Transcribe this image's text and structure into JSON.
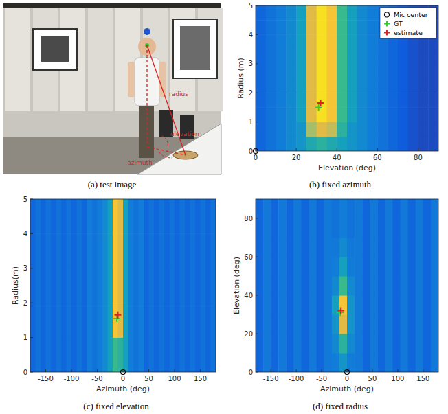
{
  "image_panel": {
    "caption": "(a) test image",
    "labels": [
      "radius",
      "elevation",
      "azimuth"
    ]
  },
  "chart_data": [
    {
      "type": "heatmap",
      "caption": "(b) fixed azimuth",
      "xlabel": "Elevation (deg)",
      "ylabel": "Radius (m)",
      "xlim": [
        0,
        90
      ],
      "xticks": [
        0,
        20,
        40,
        60,
        80
      ],
      "ylim": [
        0,
        5
      ],
      "yticks": [
        0,
        1,
        2,
        3,
        4,
        5
      ],
      "color_range": [
        0,
        1
      ],
      "xbins": [
        0,
        5,
        10,
        15,
        20,
        25,
        30,
        35,
        40,
        45,
        50,
        55,
        60,
        65,
        70,
        75,
        80,
        85,
        90
      ],
      "ybins": [
        0,
        0.5,
        1,
        1.5,
        2,
        2.5,
        3,
        3.5,
        4,
        4.5,
        5
      ],
      "cells": [
        [
          0.2,
          0.25,
          0.3,
          0.35,
          0.4,
          0.5,
          0.55,
          0.5,
          0.45,
          0.4,
          0.35,
          0.3,
          0.25,
          0.2,
          0.15,
          0.12,
          0.1,
          0.1
        ],
        [
          0.2,
          0.25,
          0.3,
          0.35,
          0.4,
          0.75,
          0.85,
          0.8,
          0.55,
          0.4,
          0.35,
          0.3,
          0.25,
          0.2,
          0.15,
          0.12,
          0.1,
          0.1
        ],
        [
          0.2,
          0.25,
          0.3,
          0.35,
          0.45,
          0.85,
          0.95,
          0.9,
          0.6,
          0.45,
          0.35,
          0.3,
          0.25,
          0.2,
          0.15,
          0.12,
          0.1,
          0.1
        ],
        [
          0.2,
          0.25,
          0.3,
          0.35,
          0.45,
          0.85,
          0.95,
          0.9,
          0.6,
          0.45,
          0.35,
          0.3,
          0.25,
          0.2,
          0.15,
          0.12,
          0.1,
          0.1
        ],
        [
          0.2,
          0.25,
          0.3,
          0.35,
          0.45,
          0.85,
          0.95,
          0.9,
          0.6,
          0.45,
          0.35,
          0.3,
          0.25,
          0.2,
          0.15,
          0.12,
          0.1,
          0.1
        ],
        [
          0.2,
          0.25,
          0.3,
          0.35,
          0.45,
          0.85,
          0.95,
          0.9,
          0.6,
          0.45,
          0.35,
          0.3,
          0.25,
          0.2,
          0.15,
          0.12,
          0.1,
          0.1
        ],
        [
          0.2,
          0.25,
          0.3,
          0.35,
          0.45,
          0.85,
          0.95,
          0.9,
          0.6,
          0.45,
          0.35,
          0.3,
          0.25,
          0.2,
          0.15,
          0.12,
          0.1,
          0.1
        ],
        [
          0.2,
          0.25,
          0.3,
          0.35,
          0.45,
          0.85,
          0.95,
          0.9,
          0.6,
          0.45,
          0.35,
          0.3,
          0.25,
          0.2,
          0.15,
          0.12,
          0.1,
          0.1
        ],
        [
          0.2,
          0.25,
          0.3,
          0.35,
          0.45,
          0.85,
          0.95,
          0.9,
          0.6,
          0.45,
          0.35,
          0.3,
          0.25,
          0.2,
          0.15,
          0.12,
          0.1,
          0.1
        ],
        [
          0.2,
          0.25,
          0.3,
          0.35,
          0.45,
          0.85,
          0.95,
          0.9,
          0.6,
          0.45,
          0.35,
          0.3,
          0.25,
          0.2,
          0.15,
          0.12,
          0.1,
          0.1
        ]
      ],
      "legend": "upper right",
      "series": [
        {
          "name": "Mic center",
          "type": "scatter",
          "marker": "circle",
          "color": "#000000",
          "x": [
            0
          ],
          "values": [
            0
          ]
        },
        {
          "name": "GT",
          "type": "scatter",
          "marker": "plus",
          "color": "#33cc33",
          "x": [
            31
          ],
          "values": [
            1.5
          ]
        },
        {
          "name": "estimate",
          "type": "scatter",
          "marker": "plus",
          "color": "#dd2222",
          "x": [
            32
          ],
          "values": [
            1.65
          ]
        }
      ]
    },
    {
      "type": "heatmap",
      "caption": "(c) fixed elevation",
      "xlabel": "Azimuth (deg)",
      "ylabel": "Radius(m)",
      "xlim": [
        -180,
        180
      ],
      "xticks": [
        -150,
        -100,
        -50,
        0,
        50,
        100,
        150
      ],
      "ylim": [
        0,
        5
      ],
      "yticks": [
        0,
        1,
        2,
        3,
        4,
        5
      ],
      "color_range": [
        0,
        1
      ],
      "xbins": [
        -180,
        -170,
        -160,
        -150,
        -140,
        -130,
        -120,
        -110,
        -100,
        -90,
        -80,
        -70,
        -60,
        -50,
        -40,
        -30,
        -20,
        -10,
        0,
        10,
        20,
        30,
        40,
        50,
        60,
        70,
        80,
        90,
        100,
        110,
        120,
        130,
        140,
        150,
        160,
        170,
        180
      ],
      "ybins": [
        0,
        1,
        2,
        3,
        4,
        5
      ],
      "cells": [
        [
          0.2,
          0.25,
          0.2,
          0.25,
          0.2,
          0.25,
          0.2,
          0.25,
          0.2,
          0.25,
          0.2,
          0.3,
          0.25,
          0.3,
          0.35,
          0.45,
          0.6,
          0.55,
          0.45,
          0.3,
          0.25,
          0.3,
          0.2,
          0.25,
          0.2,
          0.25,
          0.2,
          0.25,
          0.2,
          0.25,
          0.2,
          0.25,
          0.2,
          0.25,
          0.2,
          0.25
        ],
        [
          0.2,
          0.25,
          0.2,
          0.25,
          0.2,
          0.25,
          0.2,
          0.25,
          0.2,
          0.25,
          0.2,
          0.3,
          0.25,
          0.3,
          0.35,
          0.45,
          0.9,
          0.85,
          0.45,
          0.3,
          0.25,
          0.3,
          0.2,
          0.25,
          0.2,
          0.25,
          0.2,
          0.25,
          0.2,
          0.25,
          0.2,
          0.25,
          0.2,
          0.25,
          0.2,
          0.25
        ],
        [
          0.2,
          0.25,
          0.2,
          0.25,
          0.2,
          0.25,
          0.2,
          0.25,
          0.2,
          0.25,
          0.2,
          0.3,
          0.25,
          0.3,
          0.35,
          0.45,
          0.9,
          0.85,
          0.45,
          0.3,
          0.25,
          0.3,
          0.2,
          0.25,
          0.2,
          0.25,
          0.2,
          0.25,
          0.2,
          0.25,
          0.2,
          0.25,
          0.2,
          0.25,
          0.2,
          0.25
        ],
        [
          0.2,
          0.25,
          0.2,
          0.25,
          0.2,
          0.25,
          0.2,
          0.25,
          0.2,
          0.25,
          0.2,
          0.3,
          0.25,
          0.3,
          0.35,
          0.45,
          0.9,
          0.85,
          0.45,
          0.3,
          0.25,
          0.3,
          0.2,
          0.25,
          0.2,
          0.25,
          0.2,
          0.25,
          0.2,
          0.25,
          0.2,
          0.25,
          0.2,
          0.25,
          0.2,
          0.25
        ],
        [
          0.2,
          0.25,
          0.2,
          0.25,
          0.2,
          0.25,
          0.2,
          0.25,
          0.2,
          0.25,
          0.2,
          0.3,
          0.25,
          0.3,
          0.35,
          0.45,
          0.9,
          0.85,
          0.45,
          0.3,
          0.25,
          0.3,
          0.2,
          0.25,
          0.2,
          0.25,
          0.2,
          0.25,
          0.2,
          0.25,
          0.2,
          0.25,
          0.2,
          0.25,
          0.2,
          0.25
        ]
      ],
      "series": [
        {
          "name": "Mic center",
          "type": "scatter",
          "marker": "circle",
          "color": "#000000",
          "x": [
            0
          ],
          "values": [
            0
          ]
        },
        {
          "name": "GT",
          "type": "scatter",
          "marker": "plus",
          "color": "#33cc33",
          "x": [
            -12
          ],
          "values": [
            1.55
          ]
        },
        {
          "name": "estimate",
          "type": "scatter",
          "marker": "plus",
          "color": "#dd2222",
          "x": [
            -10
          ],
          "values": [
            1.65
          ]
        }
      ]
    },
    {
      "type": "heatmap",
      "caption": "(d) fixed radius",
      "xlabel": "Azimuth (deg)",
      "ylabel": "Elevation (deg)",
      "xlim": [
        -180,
        180
      ],
      "xticks": [
        -150,
        -100,
        -50,
        0,
        50,
        100,
        150
      ],
      "ylim": [
        0,
        90
      ],
      "yticks": [
        0,
        20,
        40,
        60,
        80
      ],
      "color_range": [
        0,
        1
      ],
      "xbins": [
        -180,
        -165,
        -150,
        -135,
        -120,
        -105,
        -90,
        -75,
        -60,
        -45,
        -30,
        -15,
        0,
        15,
        30,
        45,
        60,
        75,
        90,
        105,
        120,
        135,
        150,
        165,
        180
      ],
      "ybins": [
        0,
        10,
        20,
        30,
        40,
        50,
        60,
        70,
        80,
        90
      ],
      "cells": [
        [
          0.2,
          0.28,
          0.2,
          0.28,
          0.2,
          0.28,
          0.2,
          0.28,
          0.2,
          0.28,
          0.3,
          0.4,
          0.3,
          0.28,
          0.2,
          0.28,
          0.2,
          0.28,
          0.2,
          0.28,
          0.2,
          0.28,
          0.2,
          0.28
        ],
        [
          0.2,
          0.28,
          0.2,
          0.28,
          0.2,
          0.28,
          0.2,
          0.28,
          0.2,
          0.28,
          0.35,
          0.55,
          0.35,
          0.28,
          0.2,
          0.28,
          0.2,
          0.28,
          0.2,
          0.28,
          0.2,
          0.28,
          0.2,
          0.28
        ],
        [
          0.2,
          0.28,
          0.2,
          0.28,
          0.2,
          0.28,
          0.2,
          0.28,
          0.2,
          0.28,
          0.4,
          0.85,
          0.4,
          0.28,
          0.2,
          0.28,
          0.2,
          0.28,
          0.2,
          0.28,
          0.2,
          0.28,
          0.2,
          0.28
        ],
        [
          0.2,
          0.28,
          0.2,
          0.28,
          0.2,
          0.28,
          0.2,
          0.28,
          0.2,
          0.28,
          0.45,
          0.9,
          0.4,
          0.28,
          0.2,
          0.28,
          0.2,
          0.28,
          0.2,
          0.28,
          0.2,
          0.28,
          0.2,
          0.28
        ],
        [
          0.2,
          0.28,
          0.2,
          0.28,
          0.2,
          0.28,
          0.2,
          0.28,
          0.2,
          0.28,
          0.35,
          0.6,
          0.35,
          0.28,
          0.2,
          0.28,
          0.2,
          0.28,
          0.2,
          0.28,
          0.2,
          0.28,
          0.2,
          0.28
        ],
        [
          0.2,
          0.28,
          0.2,
          0.28,
          0.2,
          0.28,
          0.2,
          0.28,
          0.2,
          0.28,
          0.3,
          0.45,
          0.3,
          0.28,
          0.2,
          0.28,
          0.2,
          0.28,
          0.2,
          0.28,
          0.2,
          0.28,
          0.2,
          0.28
        ],
        [
          0.2,
          0.28,
          0.2,
          0.28,
          0.2,
          0.28,
          0.2,
          0.28,
          0.2,
          0.28,
          0.28,
          0.35,
          0.28,
          0.28,
          0.2,
          0.28,
          0.2,
          0.28,
          0.2,
          0.28,
          0.2,
          0.28,
          0.2,
          0.28
        ],
        [
          0.2,
          0.28,
          0.2,
          0.28,
          0.2,
          0.28,
          0.2,
          0.28,
          0.2,
          0.28,
          0.25,
          0.3,
          0.25,
          0.28,
          0.2,
          0.28,
          0.2,
          0.28,
          0.2,
          0.28,
          0.2,
          0.28,
          0.2,
          0.28
        ],
        [
          0.2,
          0.28,
          0.2,
          0.28,
          0.2,
          0.28,
          0.2,
          0.28,
          0.2,
          0.28,
          0.25,
          0.3,
          0.25,
          0.28,
          0.2,
          0.28,
          0.2,
          0.28,
          0.2,
          0.28,
          0.2,
          0.28,
          0.2,
          0.28
        ]
      ],
      "series": [
        {
          "name": "Mic center",
          "type": "scatter",
          "marker": "circle",
          "color": "#000000",
          "x": [
            0
          ],
          "values": [
            0
          ]
        },
        {
          "name": "GT",
          "type": "scatter",
          "marker": "plus",
          "color": "#33cc33",
          "x": [
            -13
          ],
          "values": [
            31
          ]
        },
        {
          "name": "estimate",
          "type": "scatter",
          "marker": "plus",
          "color": "#dd2222",
          "x": [
            -12
          ],
          "values": [
            32
          ]
        }
      ]
    }
  ]
}
